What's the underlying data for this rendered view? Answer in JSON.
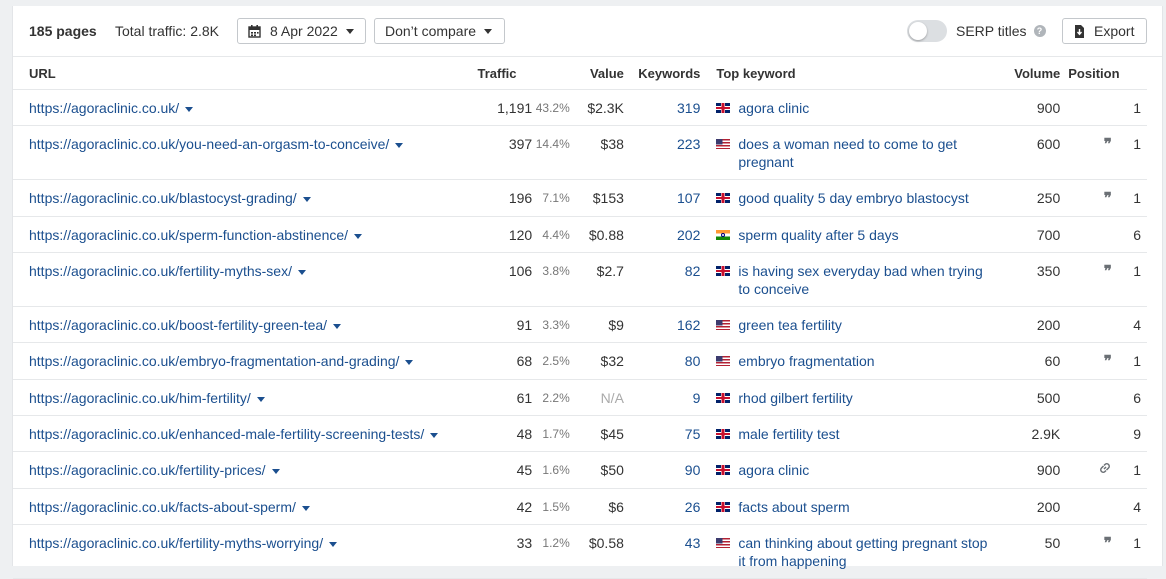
{
  "toolbar": {
    "pages": "185 pages",
    "total_traffic": "Total traffic: 2.8K",
    "date": "8 Apr 2022",
    "compare": "Don’t compare",
    "serp_titles": "SERP titles",
    "serp_titles_enabled": false,
    "export": "Export"
  },
  "table": {
    "headers": {
      "url": "URL",
      "traffic": "Traffic",
      "value": "Value",
      "keywords": "Keywords",
      "top_keyword": "Top keyword",
      "volume": "Volume",
      "position": "Position"
    },
    "rows": [
      {
        "url": "https://agoraclinic.co.uk/",
        "traffic": "1,191",
        "pct": "43.2%",
        "value": "$2.3K",
        "keywords": "319",
        "flag": "gb",
        "top_keyword": "agora clinic",
        "volume": "900",
        "serp_icon": "",
        "position": "1"
      },
      {
        "url": "https://agoraclinic.co.uk/you-need-an-orgasm-to-conceive/",
        "traffic": "397",
        "pct": "14.4%",
        "value": "$38",
        "keywords": "223",
        "flag": "us",
        "top_keyword": "does a woman need to come to get pregnant",
        "volume": "600",
        "serp_icon": "quote-icon",
        "position": "1"
      },
      {
        "url": "https://agoraclinic.co.uk/blastocyst-grading/",
        "traffic": "196",
        "pct": "7.1%",
        "value": "$153",
        "keywords": "107",
        "flag": "gb",
        "top_keyword": "good quality 5 day embryo blastocyst",
        "volume": "250",
        "serp_icon": "quote-icon",
        "position": "1"
      },
      {
        "url": "https://agoraclinic.co.uk/sperm-function-abstinence/",
        "traffic": "120",
        "pct": "4.4%",
        "value": "$0.88",
        "keywords": "202",
        "flag": "in",
        "top_keyword": "sperm quality after 5 days",
        "volume": "700",
        "serp_icon": "",
        "position": "6"
      },
      {
        "url": "https://agoraclinic.co.uk/fertility-myths-sex/",
        "traffic": "106",
        "pct": "3.8%",
        "value": "$2.7",
        "keywords": "82",
        "flag": "gb",
        "top_keyword": "is having sex everyday bad when trying to conceive",
        "volume": "350",
        "serp_icon": "quote-icon",
        "position": "1"
      },
      {
        "url": "https://agoraclinic.co.uk/boost-fertility-green-tea/",
        "traffic": "91",
        "pct": "3.3%",
        "value": "$9",
        "keywords": "162",
        "flag": "us",
        "top_keyword": "green tea fertility",
        "volume": "200",
        "serp_icon": "",
        "position": "4"
      },
      {
        "url": "https://agoraclinic.co.uk/embryo-fragmentation-and-grading/",
        "traffic": "68",
        "pct": "2.5%",
        "value": "$32",
        "keywords": "80",
        "flag": "us",
        "top_keyword": "embryo fragmentation",
        "volume": "60",
        "serp_icon": "quote-icon",
        "position": "1"
      },
      {
        "url": "https://agoraclinic.co.uk/him-fertility/",
        "traffic": "61",
        "pct": "2.2%",
        "value": "N/A",
        "keywords": "9",
        "flag": "gb",
        "top_keyword": "rhod gilbert fertility",
        "volume": "500",
        "serp_icon": "",
        "position": "6"
      },
      {
        "url": "https://agoraclinic.co.uk/enhanced-male-fertility-screening-tests/",
        "traffic": "48",
        "pct": "1.7%",
        "value": "$45",
        "keywords": "75",
        "flag": "gb",
        "top_keyword": "male fertility test",
        "volume": "2.9K",
        "serp_icon": "",
        "position": "9"
      },
      {
        "url": "https://agoraclinic.co.uk/fertility-prices/",
        "traffic": "45",
        "pct": "1.6%",
        "value": "$50",
        "keywords": "90",
        "flag": "gb",
        "top_keyword": "agora clinic",
        "volume": "900",
        "serp_icon": "link-icon",
        "position": "1"
      },
      {
        "url": "https://agoraclinic.co.uk/facts-about-sperm/",
        "traffic": "42",
        "pct": "1.5%",
        "value": "$6",
        "keywords": "26",
        "flag": "gb",
        "top_keyword": "facts about sperm",
        "volume": "200",
        "serp_icon": "",
        "position": "4"
      },
      {
        "url": "https://agoraclinic.co.uk/fertility-myths-worrying/",
        "traffic": "33",
        "pct": "1.2%",
        "value": "$0.58",
        "keywords": "43",
        "flag": "us",
        "top_keyword": "can thinking about getting pregnant stop it from happening",
        "volume": "50",
        "serp_icon": "quote-icon",
        "position": "1"
      }
    ]
  }
}
